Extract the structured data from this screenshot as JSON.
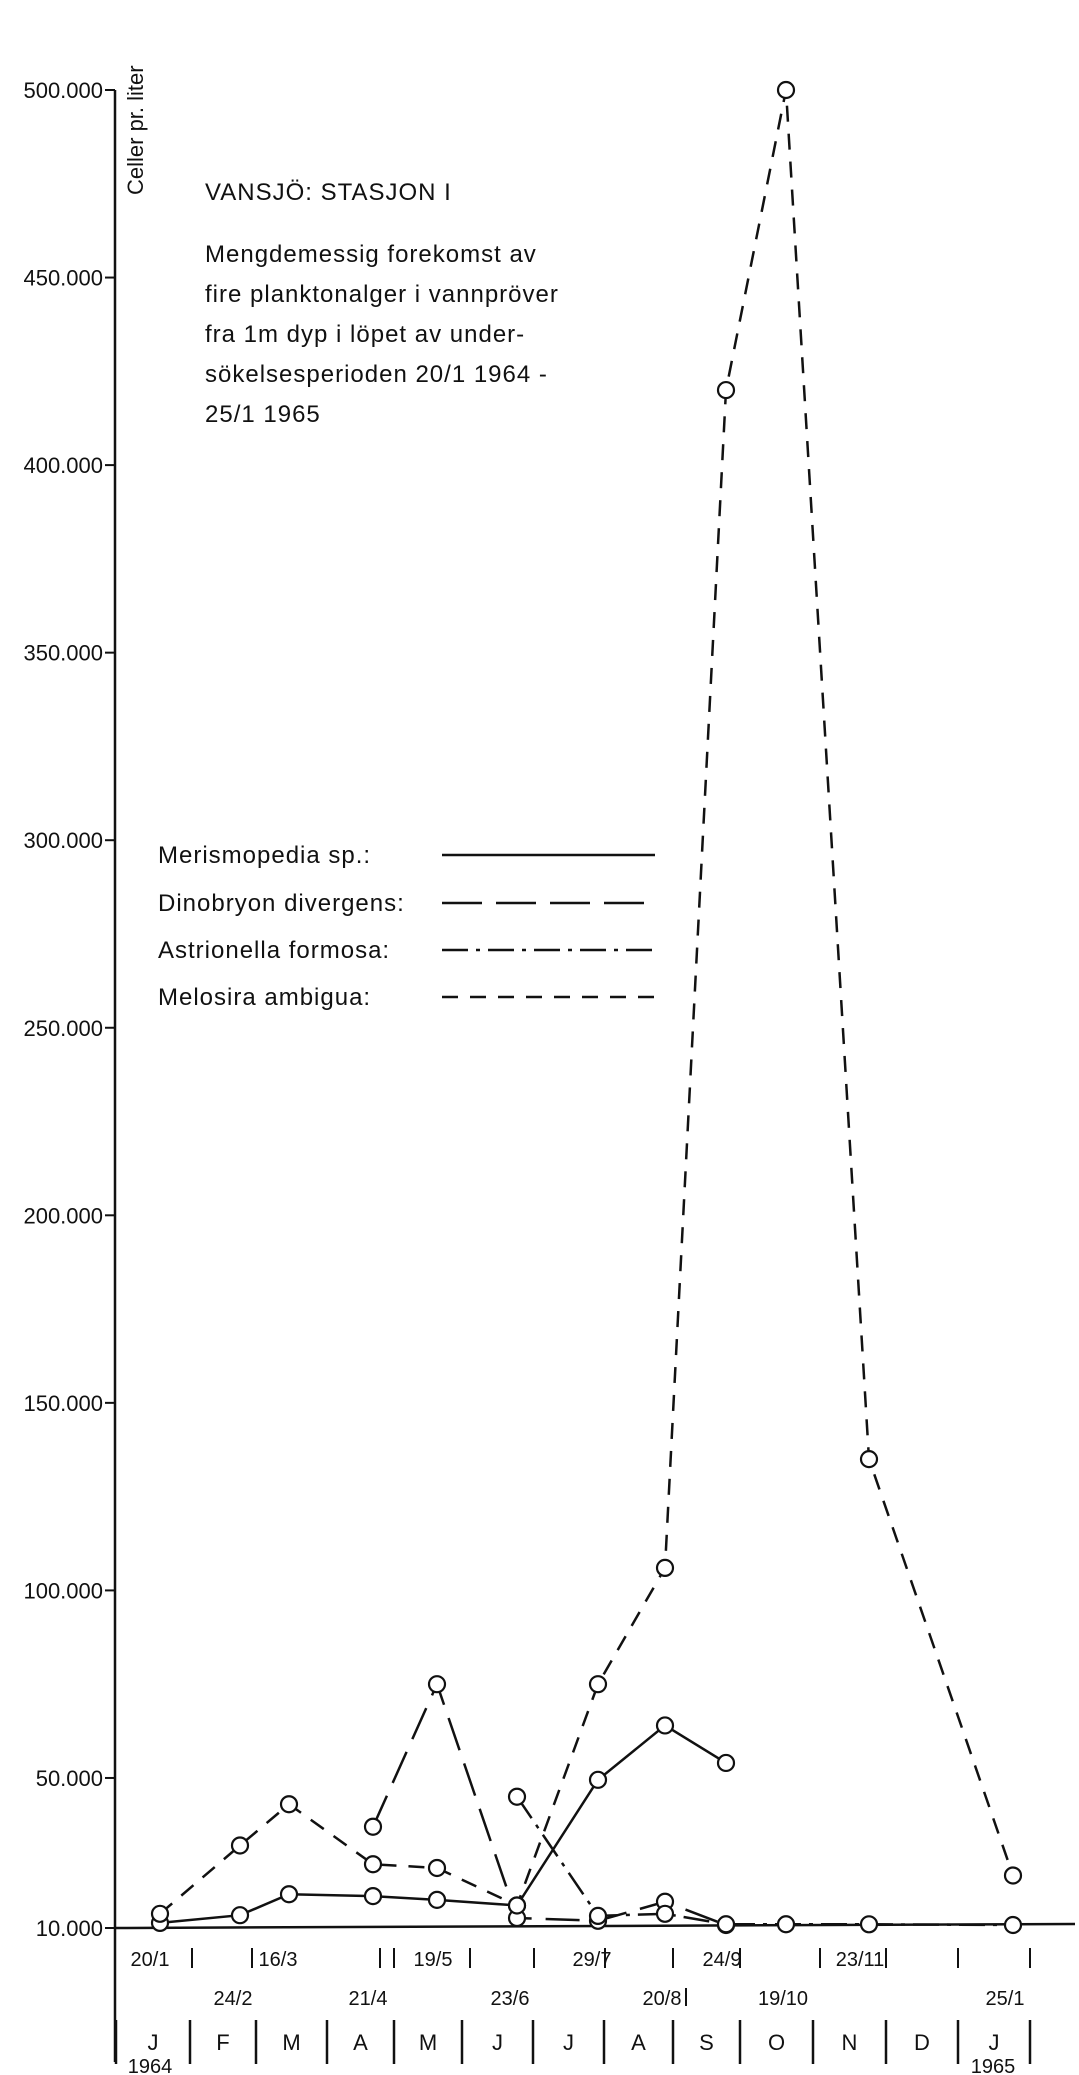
{
  "chart_data": {
    "type": "line",
    "title": "VANSJÖ: STASJON I",
    "subtitle_lines": [
      "Mengdemessig forekomst av",
      "fire planktonalger i vannpröver",
      "fra 1m dyp i löpet av under-",
      "sökelsesperioden 20/1 1964 -",
      "25/1 1965"
    ],
    "ylabel": "Celler pr. liter",
    "ylim": [
      10000,
      500000
    ],
    "yticks": [
      10000,
      50000,
      100000,
      150000,
      200000,
      250000,
      300000,
      350000,
      400000,
      450000,
      500000
    ],
    "ytick_labels": [
      "10.000",
      "50.000",
      "100.000",
      "150.000",
      "200.000",
      "250.000",
      "300.000",
      "350.000",
      "400.000",
      "450.000",
      "500.000"
    ],
    "x_dates_upper": [
      "20/1",
      "16/3",
      "19/5",
      "29/7",
      "24/9",
      "23/11"
    ],
    "x_dates_lower": [
      "24/2",
      "21/4",
      "23/6",
      "20/8",
      "19/10",
      "25/1"
    ],
    "months": [
      "J",
      "F",
      "M",
      "A",
      "M",
      "J",
      "J",
      "A",
      "S",
      "O",
      "N",
      "D",
      "J"
    ],
    "years": [
      "1964",
      "1965"
    ],
    "series": [
      {
        "name": "Merismopedia sp.:",
        "style": "solid",
        "points": [
          [
            "20/1",
            1500
          ],
          [
            "24/2",
            7000
          ],
          [
            "16/3",
            19000
          ],
          [
            "21/4",
            18500
          ],
          [
            "19/5",
            17500
          ],
          [
            "23/6",
            16000
          ],
          [
            "29/7",
            49500
          ],
          [
            "20/8",
            64000
          ],
          [
            "24/9",
            54000
          ]
        ]
      },
      {
        "name": "Dinobryon divergens:",
        "style": "longdash",
        "points": [
          [
            "21/4",
            37000
          ],
          [
            "19/5",
            75000
          ],
          [
            "23/6",
            5000
          ],
          [
            "29/7",
            3000
          ],
          [
            "20/8",
            17000
          ],
          [
            "24/9",
            0
          ]
        ]
      },
      {
        "name": "Astrionella formosa:",
        "style": "dashdot",
        "points": [
          [
            "23/6",
            45000
          ],
          [
            "29/7",
            6500
          ],
          [
            "20/8",
            8000
          ],
          [
            "24/9",
            11000
          ],
          [
            "19/10",
            11000
          ],
          [
            "23/11",
            500
          ],
          [
            "25/1",
            0
          ]
        ]
      },
      {
        "name": "Melosira ambigua:",
        "style": "shortdash",
        "points": [
          [
            "20/1",
            8000
          ],
          [
            "24/2",
            32000
          ],
          [
            "16/3",
            43000
          ],
          [
            "21/4",
            27000
          ],
          [
            "19/5",
            26000
          ],
          [
            "23/6",
            16000
          ],
          [
            "29/7",
            75000
          ],
          [
            "20/8",
            106000
          ],
          [
            "24/9",
            420000
          ],
          [
            "19/10",
            500000
          ],
          [
            "23/11",
            135000
          ],
          [
            "25/1",
            24000
          ]
        ]
      }
    ]
  }
}
